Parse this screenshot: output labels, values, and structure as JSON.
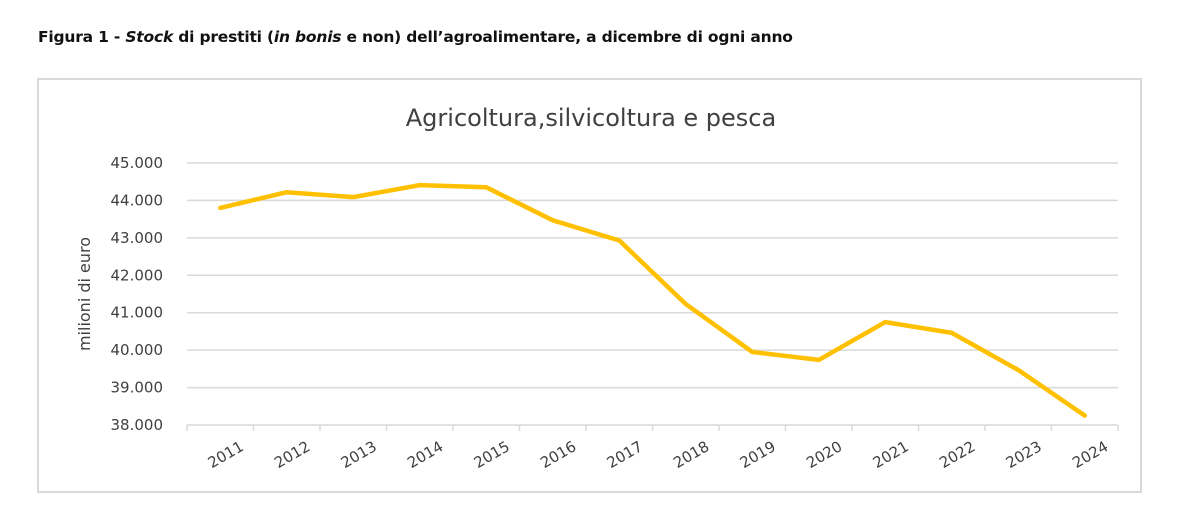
{
  "caption": {
    "prefix": "Figura 1 - ",
    "stock": "Stock",
    "part2": " di prestiti (",
    "in_bonis": "in bonis",
    "part3": " e non) dell’agroalimentare, a dicembre di ogni anno"
  },
  "colors": {
    "line": "#FFC000",
    "grid": "#d9d9d9",
    "text": "#404040",
    "frame": "#d9d9d9"
  },
  "chart_data": {
    "type": "line",
    "title": "Agricoltura,silvicoltura e pesca",
    "xlabel": "",
    "ylabel": "milioni di euro",
    "categories": [
      "2011",
      "2012",
      "2013",
      "2014",
      "2015",
      "2016",
      "2017",
      "2018",
      "2019",
      "2020",
      "2021",
      "2022",
      "2023",
      "2024"
    ],
    "series": [
      {
        "name": "Agricoltura,silvicoltura e pesca",
        "values": [
          43800,
          44220,
          44090,
          44410,
          44350,
          43470,
          42930,
          41230,
          39950,
          39740,
          40750,
          40460,
          39470,
          38250
        ]
      }
    ],
    "ylim": [
      38000,
      45000
    ],
    "yticks": [
      45000,
      44000,
      43000,
      42000,
      41000,
      40000,
      39000,
      38000
    ],
    "ytick_labels": [
      "45.000",
      "44.000",
      "43.000",
      "42.000",
      "41.000",
      "40.000",
      "39.000",
      "38.000"
    ],
    "grid": true,
    "legend": "none"
  }
}
